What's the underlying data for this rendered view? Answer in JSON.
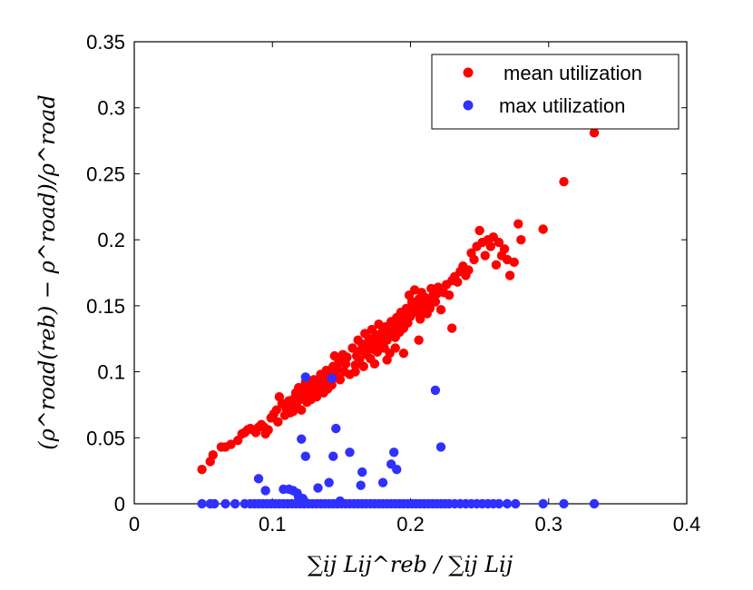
{
  "chart_data": {
    "type": "scatter",
    "xlabel": "∑ij Lij^reb / ∑ij Lij",
    "ylabel": "(ρ^road(reb) − ρ^road)/ρ^road",
    "xlim": [
      0,
      0.4
    ],
    "ylim": [
      0,
      0.35
    ],
    "x_ticks": [
      "0",
      "0.1",
      "0.2",
      "0.3",
      "0.4"
    ],
    "y_ticks": [
      "0",
      "0.05",
      "0.1",
      "0.15",
      "0.2",
      "0.25",
      "0.3",
      "0.35"
    ],
    "legend_position": "top-right",
    "series": [
      {
        "name": "mean utilization",
        "color": "#ff0000",
        "points": [
          [
            0.049,
            0.026
          ],
          [
            0.055,
            0.032
          ],
          [
            0.057,
            0.037
          ],
          [
            0.063,
            0.043
          ],
          [
            0.066,
            0.043
          ],
          [
            0.07,
            0.045
          ],
          [
            0.075,
            0.048
          ],
          [
            0.078,
            0.053
          ],
          [
            0.08,
            0.054
          ],
          [
            0.082,
            0.056
          ],
          [
            0.084,
            0.057
          ],
          [
            0.086,
            0.056
          ],
          [
            0.088,
            0.054
          ],
          [
            0.09,
            0.058
          ],
          [
            0.092,
            0.06
          ],
          [
            0.094,
            0.058
          ],
          [
            0.095,
            0.053
          ],
          [
            0.097,
            0.056
          ],
          [
            0.099,
            0.065
          ],
          [
            0.101,
            0.068
          ],
          [
            0.103,
            0.071
          ],
          [
            0.105,
            0.081
          ],
          [
            0.107,
            0.076
          ],
          [
            0.109,
            0.067
          ],
          [
            0.11,
            0.072
          ],
          [
            0.112,
            0.078
          ],
          [
            0.113,
            0.069
          ],
          [
            0.114,
            0.075
          ],
          [
            0.116,
            0.08
          ],
          [
            0.117,
            0.084
          ],
          [
            0.118,
            0.073
          ],
          [
            0.119,
            0.088
          ],
          [
            0.12,
            0.079
          ],
          [
            0.121,
            0.071
          ],
          [
            0.122,
            0.082
          ],
          [
            0.123,
            0.086
          ],
          [
            0.124,
            0.092
          ],
          [
            0.125,
            0.077
          ],
          [
            0.126,
            0.09
          ],
          [
            0.127,
            0.083
          ],
          [
            0.128,
            0.079
          ],
          [
            0.129,
            0.086
          ],
          [
            0.13,
            0.094
          ],
          [
            0.131,
            0.088
          ],
          [
            0.132,
            0.081
          ],
          [
            0.133,
            0.092
          ],
          [
            0.134,
            0.085
          ],
          [
            0.135,
            0.098
          ],
          [
            0.136,
            0.09
          ],
          [
            0.137,
            0.084
          ],
          [
            0.138,
            0.095
          ],
          [
            0.139,
            0.101
          ],
          [
            0.14,
            0.087
          ],
          [
            0.141,
            0.093
          ],
          [
            0.142,
            0.099
          ],
          [
            0.143,
            0.09
          ],
          [
            0.144,
            0.104
          ],
          [
            0.145,
            0.112
          ],
          [
            0.146,
            0.096
          ],
          [
            0.147,
            0.102
          ],
          [
            0.148,
            0.109
          ],
          [
            0.149,
            0.094
          ],
          [
            0.15,
            0.107
          ],
          [
            0.151,
            0.113
          ],
          [
            0.152,
            0.1
          ],
          [
            0.153,
            0.106
          ],
          [
            0.154,
            0.111
          ],
          [
            0.156,
            0.098
          ],
          [
            0.158,
            0.118
          ],
          [
            0.16,
            0.105
          ],
          [
            0.161,
            0.112
          ],
          [
            0.162,
            0.124
          ],
          [
            0.163,
            0.109
          ],
          [
            0.164,
            0.116
          ],
          [
            0.165,
            0.121
          ],
          [
            0.166,
            0.104
          ],
          [
            0.167,
            0.129
          ],
          [
            0.168,
            0.113
          ],
          [
            0.169,
            0.119
          ],
          [
            0.17,
            0.125
          ],
          [
            0.171,
            0.11
          ],
          [
            0.172,
            0.132
          ],
          [
            0.173,
            0.117
          ],
          [
            0.174,
            0.122
          ],
          [
            0.175,
            0.128
          ],
          [
            0.176,
            0.115
          ],
          [
            0.177,
            0.136
          ],
          [
            0.178,
            0.12
          ],
          [
            0.179,
            0.126
          ],
          [
            0.18,
            0.131
          ],
          [
            0.181,
            0.118
          ],
          [
            0.182,
            0.134
          ],
          [
            0.183,
            0.124
          ],
          [
            0.184,
            0.129
          ],
          [
            0.185,
            0.114
          ],
          [
            0.186,
            0.138
          ],
          [
            0.187,
            0.127
          ],
          [
            0.188,
            0.132
          ],
          [
            0.189,
            0.126
          ],
          [
            0.19,
            0.141
          ],
          [
            0.191,
            0.135
          ],
          [
            0.192,
            0.13
          ],
          [
            0.193,
            0.145
          ],
          [
            0.194,
            0.139
          ],
          [
            0.195,
            0.133
          ],
          [
            0.196,
            0.143
          ],
          [
            0.197,
            0.148
          ],
          [
            0.198,
            0.137
          ],
          [
            0.199,
            0.158
          ],
          [
            0.2,
            0.142
          ],
          [
            0.201,
            0.153
          ],
          [
            0.202,
            0.147
          ],
          [
            0.203,
            0.162
          ],
          [
            0.204,
            0.151
          ],
          [
            0.205,
            0.145
          ],
          [
            0.206,
            0.155
          ],
          [
            0.207,
            0.14
          ],
          [
            0.208,
            0.16
          ],
          [
            0.209,
            0.15
          ],
          [
            0.21,
            0.146
          ],
          [
            0.211,
            0.156
          ],
          [
            0.212,
            0.144
          ],
          [
            0.213,
            0.152
          ],
          [
            0.214,
            0.148
          ],
          [
            0.215,
            0.163
          ],
          [
            0.216,
            0.157
          ],
          [
            0.217,
            0.161
          ],
          [
            0.218,
            0.153
          ],
          [
            0.219,
            0.159
          ],
          [
            0.22,
            0.164
          ],
          [
            0.222,
            0.147
          ],
          [
            0.224,
            0.16
          ],
          [
            0.226,
            0.166
          ],
          [
            0.228,
            0.158
          ],
          [
            0.23,
            0.169
          ],
          [
            0.232,
            0.172
          ],
          [
            0.234,
            0.168
          ],
          [
            0.236,
            0.176
          ],
          [
            0.238,
            0.18
          ],
          [
            0.24,
            0.173
          ],
          [
            0.242,
            0.177
          ],
          [
            0.244,
            0.19
          ],
          [
            0.246,
            0.185
          ],
          [
            0.248,
            0.195
          ],
          [
            0.25,
            0.207
          ],
          [
            0.252,
            0.198
          ],
          [
            0.254,
            0.188
          ],
          [
            0.256,
            0.2
          ],
          [
            0.258,
            0.195
          ],
          [
            0.26,
            0.202
          ],
          [
            0.262,
            0.181
          ],
          [
            0.264,
            0.198
          ],
          [
            0.266,
            0.188
          ],
          [
            0.268,
            0.193
          ],
          [
            0.27,
            0.185
          ],
          [
            0.272,
            0.173
          ],
          [
            0.275,
            0.183
          ],
          [
            0.278,
            0.212
          ],
          [
            0.28,
            0.2
          ],
          [
            0.296,
            0.208
          ],
          [
            0.311,
            0.244
          ],
          [
            0.333,
            0.281
          ],
          [
            0.23,
            0.133
          ],
          [
            0.195,
            0.114
          ],
          [
            0.183,
            0.109
          ],
          [
            0.206,
            0.124
          ],
          [
            0.189,
            0.118
          ],
          [
            0.174,
            0.106
          ],
          [
            0.16,
            0.1
          ],
          [
            0.148,
            0.095
          ],
          [
            0.136,
            0.089
          ],
          [
            0.126,
            0.081
          ],
          [
            0.115,
            0.07
          ],
          [
            0.104,
            0.062
          ]
        ]
      },
      {
        "name": "max utilization",
        "color": "#3030ff",
        "points": [
          [
            0.049,
            0.0
          ],
          [
            0.055,
            0.0
          ],
          [
            0.058,
            0.0
          ],
          [
            0.066,
            0.0
          ],
          [
            0.073,
            0.0
          ],
          [
            0.08,
            0.0
          ],
          [
            0.084,
            0.0
          ],
          [
            0.087,
            0.0
          ],
          [
            0.09,
            0.0
          ],
          [
            0.093,
            0.0
          ],
          [
            0.096,
            0.0
          ],
          [
            0.099,
            0.0
          ],
          [
            0.102,
            0.0
          ],
          [
            0.105,
            0.0
          ],
          [
            0.108,
            0.0
          ],
          [
            0.111,
            0.0
          ],
          [
            0.114,
            0.0
          ],
          [
            0.117,
            0.0
          ],
          [
            0.12,
            0.0
          ],
          [
            0.123,
            0.0
          ],
          [
            0.126,
            0.0
          ],
          [
            0.129,
            0.0
          ],
          [
            0.132,
            0.0
          ],
          [
            0.135,
            0.0
          ],
          [
            0.138,
            0.0
          ],
          [
            0.141,
            0.0
          ],
          [
            0.144,
            0.0
          ],
          [
            0.147,
            0.0
          ],
          [
            0.15,
            0.0
          ],
          [
            0.153,
            0.0
          ],
          [
            0.156,
            0.0
          ],
          [
            0.159,
            0.0
          ],
          [
            0.162,
            0.0
          ],
          [
            0.165,
            0.0
          ],
          [
            0.168,
            0.0
          ],
          [
            0.171,
            0.0
          ],
          [
            0.174,
            0.0
          ],
          [
            0.177,
            0.0
          ],
          [
            0.18,
            0.0
          ],
          [
            0.183,
            0.0
          ],
          [
            0.186,
            0.0
          ],
          [
            0.189,
            0.0
          ],
          [
            0.192,
            0.0
          ],
          [
            0.195,
            0.0
          ],
          [
            0.198,
            0.0
          ],
          [
            0.201,
            0.0
          ],
          [
            0.204,
            0.0
          ],
          [
            0.207,
            0.0
          ],
          [
            0.21,
            0.0
          ],
          [
            0.213,
            0.0
          ],
          [
            0.216,
            0.0
          ],
          [
            0.219,
            0.0
          ],
          [
            0.222,
            0.0
          ],
          [
            0.225,
            0.0
          ],
          [
            0.228,
            0.0
          ],
          [
            0.232,
            0.0
          ],
          [
            0.236,
            0.0
          ],
          [
            0.24,
            0.0
          ],
          [
            0.244,
            0.0
          ],
          [
            0.248,
            0.0
          ],
          [
            0.252,
            0.0
          ],
          [
            0.256,
            0.0
          ],
          [
            0.26,
            0.0
          ],
          [
            0.264,
            0.0
          ],
          [
            0.27,
            0.0
          ],
          [
            0.276,
            0.0
          ],
          [
            0.296,
            0.0
          ],
          [
            0.311,
            0.0
          ],
          [
            0.333,
            0.0
          ],
          [
            0.149,
            0.002
          ],
          [
            0.123,
            0.002
          ],
          [
            0.09,
            0.019
          ],
          [
            0.095,
            0.01
          ],
          [
            0.108,
            0.011
          ],
          [
            0.112,
            0.011
          ],
          [
            0.115,
            0.01
          ],
          [
            0.118,
            0.008
          ],
          [
            0.119,
            0.005
          ],
          [
            0.122,
            0.004
          ],
          [
            0.123,
            0.002
          ],
          [
            0.121,
            0.049
          ],
          [
            0.124,
            0.096
          ],
          [
            0.143,
            0.095
          ],
          [
            0.124,
            0.036
          ],
          [
            0.146,
            0.057
          ],
          [
            0.144,
            0.036
          ],
          [
            0.156,
            0.039
          ],
          [
            0.141,
            0.016
          ],
          [
            0.165,
            0.024
          ],
          [
            0.164,
            0.014
          ],
          [
            0.186,
            0.03
          ],
          [
            0.188,
            0.039
          ],
          [
            0.19,
            0.026
          ],
          [
            0.18,
            0.016
          ],
          [
            0.218,
            0.086
          ],
          [
            0.222,
            0.043
          ],
          [
            0.133,
            0.012
          ]
        ]
      }
    ]
  }
}
